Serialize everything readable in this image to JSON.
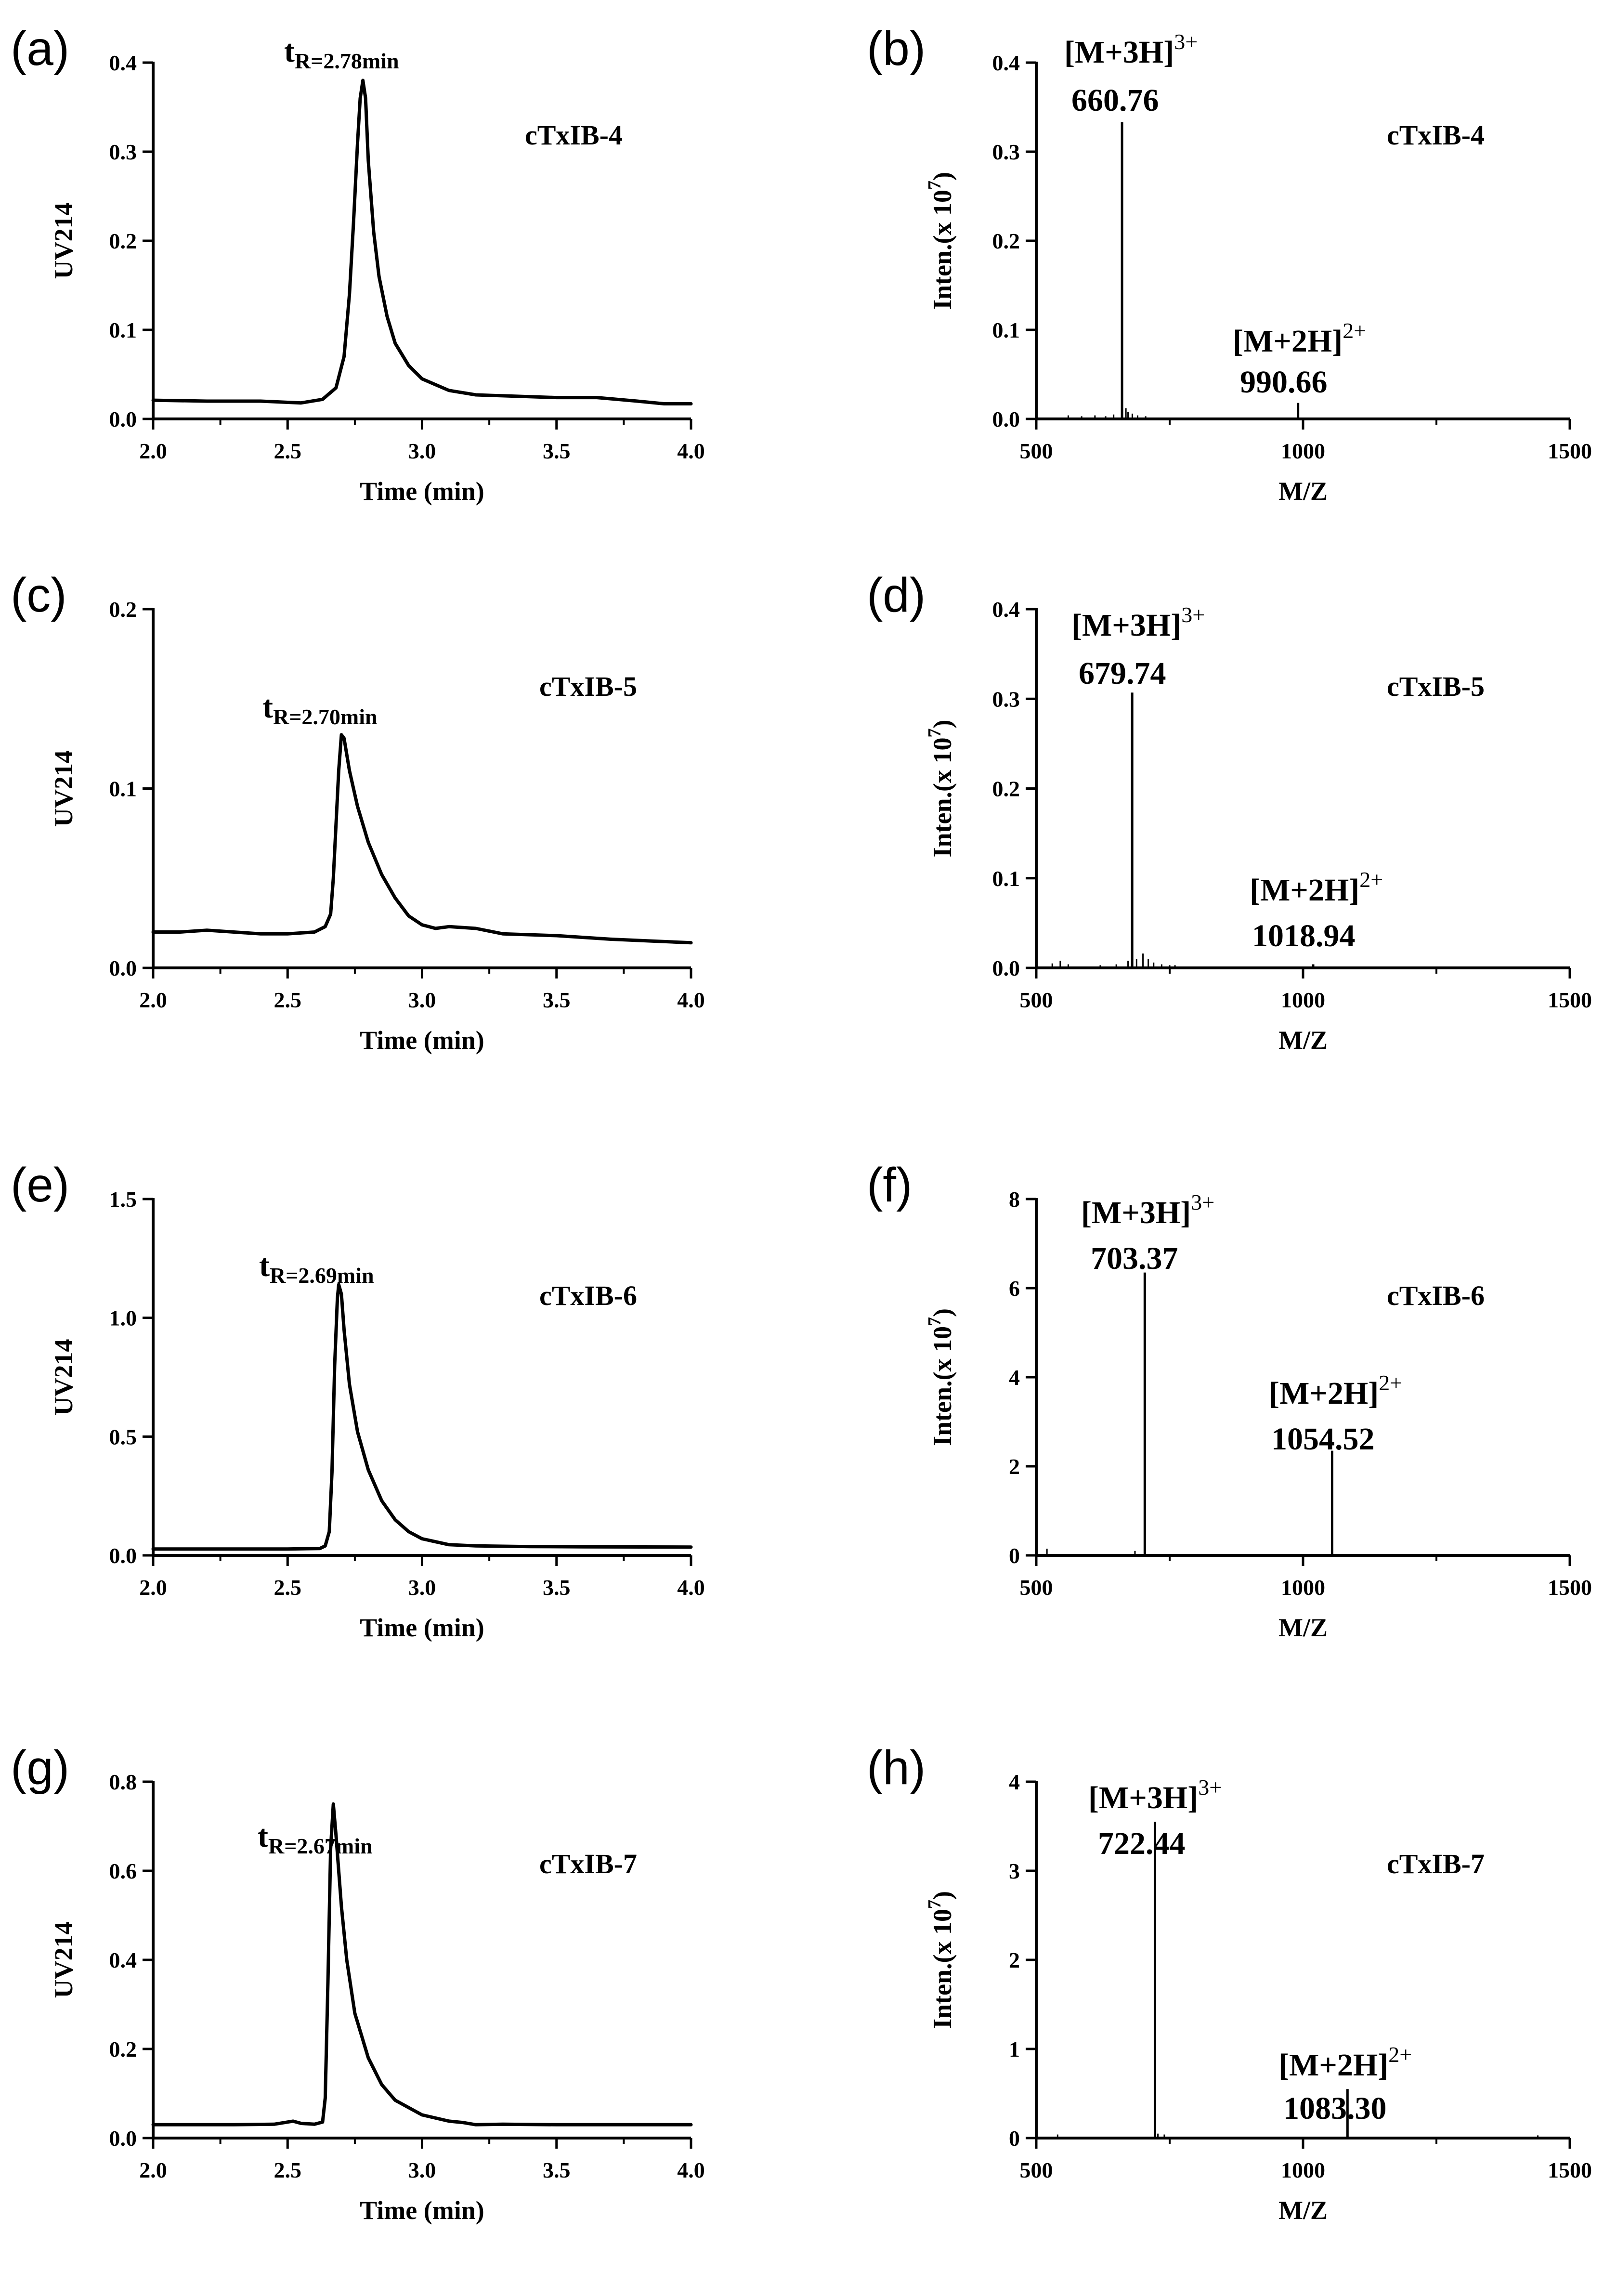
{
  "chart_data": [
    {
      "panel": "(a)",
      "type": "line",
      "sample": "cTxIB-4",
      "xlabel": "Time (min)",
      "ylabel": "UV214",
      "xlim": [
        2.0,
        4.0
      ],
      "ylim": [
        0,
        0.4
      ],
      "xticks": [
        "2.0",
        "2.5",
        "3.0",
        "3.5",
        "4.0"
      ],
      "yticks": [
        "0.0",
        "0.1",
        "0.2",
        "0.3",
        "0.4"
      ],
      "annotation": {
        "t": "t",
        "sub": "R=2.78min",
        "x": 2.78,
        "y": 0.385
      },
      "x": [
        2.0,
        2.2,
        2.4,
        2.55,
        2.63,
        2.68,
        2.71,
        2.73,
        2.745,
        2.76,
        2.77,
        2.78,
        2.79,
        2.8,
        2.82,
        2.84,
        2.87,
        2.9,
        2.95,
        3.0,
        3.1,
        3.2,
        3.3,
        3.5,
        3.65,
        3.8,
        3.9,
        4.0
      ],
      "y": [
        0.021,
        0.02,
        0.02,
        0.018,
        0.022,
        0.035,
        0.07,
        0.14,
        0.22,
        0.31,
        0.36,
        0.38,
        0.36,
        0.29,
        0.21,
        0.16,
        0.115,
        0.085,
        0.06,
        0.045,
        0.032,
        0.027,
        0.026,
        0.024,
        0.024,
        0.02,
        0.017,
        0.017
      ]
    },
    {
      "panel": "(b)",
      "type": "bar",
      "sample": "cTxIB-4",
      "xlabel": "M/Z",
      "ylabel": "Inten.(x 10",
      "ylabel_exp": "7",
      "ylabel_end": ")",
      "xlim": [
        500,
        1500
      ],
      "ylim": [
        0,
        0.4
      ],
      "xticks": [
        "500",
        "1000",
        "1500"
      ],
      "yticks": [
        "0.0",
        "0.1",
        "0.2",
        "0.3",
        "0.4"
      ],
      "peaks": [
        {
          "mz": 660.76,
          "value": 0.333,
          "ion": "[M+3H]",
          "charge": "3+",
          "label": "660.76"
        },
        {
          "mz": 990.66,
          "value": 0.018,
          "ion": "[M+2H]",
          "charge": "2+",
          "label": "990.66"
        }
      ],
      "minor": [
        [
          560,
          0.004
        ],
        [
          585,
          0.003
        ],
        [
          610,
          0.004
        ],
        [
          630,
          0.003
        ],
        [
          645,
          0.005
        ],
        [
          668,
          0.012
        ],
        [
          672,
          0.008
        ],
        [
          680,
          0.006
        ],
        [
          690,
          0.004
        ],
        [
          705,
          0.003
        ]
      ]
    },
    {
      "panel": "(c)",
      "type": "line",
      "sample": "cTxIB-5",
      "xlabel": "Time (min)",
      "ylabel": "UV214",
      "xlim": [
        2.0,
        4.0
      ],
      "ylim": [
        0,
        0.2
      ],
      "xticks": [
        "2.0",
        "2.5",
        "3.0",
        "3.5",
        "4.0"
      ],
      "yticks": [
        "0.0",
        "0.1",
        "0.2"
      ],
      "annotation": {
        "t": "t",
        "sub": "R=2.70min",
        "x": 2.7,
        "y": 0.133
      },
      "x": [
        2.0,
        2.1,
        2.2,
        2.3,
        2.4,
        2.5,
        2.6,
        2.64,
        2.66,
        2.67,
        2.68,
        2.69,
        2.7,
        2.71,
        2.73,
        2.76,
        2.8,
        2.85,
        2.9,
        2.95,
        3.0,
        3.05,
        3.1,
        3.2,
        3.3,
        3.5,
        3.7,
        3.85,
        4.0
      ],
      "y": [
        0.02,
        0.02,
        0.021,
        0.02,
        0.019,
        0.019,
        0.02,
        0.023,
        0.03,
        0.05,
        0.08,
        0.11,
        0.13,
        0.128,
        0.11,
        0.09,
        0.07,
        0.052,
        0.039,
        0.029,
        0.024,
        0.022,
        0.023,
        0.022,
        0.019,
        0.018,
        0.016,
        0.015,
        0.014
      ]
    },
    {
      "panel": "(d)",
      "type": "bar",
      "sample": "cTxIB-5",
      "xlabel": "M/Z",
      "ylabel": "Inten.(x 10",
      "ylabel_exp": "7",
      "ylabel_end": ")",
      "xlim": [
        500,
        1500
      ],
      "ylim": [
        0,
        0.4
      ],
      "xticks": [
        "500",
        "1000",
        "1500"
      ],
      "yticks": [
        "0.0",
        "0.1",
        "0.2",
        "0.3",
        "0.4"
      ],
      "peaks": [
        {
          "mz": 679.74,
          "value": 0.307,
          "ion": "[M+3H]",
          "charge": "3+",
          "label": "679.74"
        },
        {
          "mz": 1018.94,
          "value": 0.004,
          "ion": "[M+2H]",
          "charge": "2+",
          "label": "1018.94"
        }
      ],
      "minor": [
        [
          530,
          0.005
        ],
        [
          545,
          0.008
        ],
        [
          560,
          0.004
        ],
        [
          620,
          0.003
        ],
        [
          650,
          0.004
        ],
        [
          672,
          0.008
        ],
        [
          688,
          0.01
        ],
        [
          700,
          0.016
        ],
        [
          710,
          0.01
        ],
        [
          720,
          0.006
        ],
        [
          735,
          0.004
        ],
        [
          750,
          0.003
        ],
        [
          760,
          0.003
        ]
      ]
    },
    {
      "panel": "(e)",
      "type": "line",
      "sample": "cTxIB-6",
      "xlabel": "Time (min)",
      "ylabel": "UV214",
      "xlim": [
        2.0,
        4.0
      ],
      "ylim": [
        0,
        1.5
      ],
      "xticks": [
        "2.0",
        "2.5",
        "3.0",
        "3.5",
        "4.0"
      ],
      "yticks": [
        "0.0",
        "0.5",
        "1.0",
        "1.5"
      ],
      "annotation": {
        "t": "t",
        "sub": "R=2.69min",
        "x": 2.69,
        "y": 1.15
      },
      "x": [
        2.0,
        2.3,
        2.5,
        2.62,
        2.64,
        2.655,
        2.665,
        2.675,
        2.685,
        2.69,
        2.7,
        2.71,
        2.73,
        2.76,
        2.8,
        2.85,
        2.9,
        2.95,
        3.0,
        3.1,
        3.2,
        3.4,
        3.6,
        4.0
      ],
      "y": [
        0.027,
        0.027,
        0.027,
        0.029,
        0.04,
        0.1,
        0.35,
        0.8,
        1.08,
        1.14,
        1.1,
        0.95,
        0.72,
        0.52,
        0.36,
        0.23,
        0.15,
        0.1,
        0.07,
        0.045,
        0.04,
        0.037,
        0.036,
        0.035
      ]
    },
    {
      "panel": "(f)",
      "type": "bar",
      "sample": "cTxIB-6",
      "xlabel": "M/Z",
      "ylabel": "Inten.(x 10",
      "ylabel_exp": "7",
      "ylabel_end": ")",
      "xlim": [
        500,
        1500
      ],
      "ylim": [
        0,
        8
      ],
      "xticks": [
        "500",
        "1000",
        "1500"
      ],
      "yticks": [
        "0",
        "2",
        "4",
        "6",
        "8"
      ],
      "peaks": [
        {
          "mz": 703.37,
          "value": 6.35,
          "ion": "[M+3H]",
          "charge": "3+",
          "label": "703.37"
        },
        {
          "mz": 1054.52,
          "value": 2.35,
          "ion": "[M+2H]",
          "charge": "2+",
          "label": "1054.52"
        }
      ],
      "minor": [
        [
          520,
          0.15
        ],
        [
          685,
          0.1
        ],
        [
          1400,
          0.03
        ]
      ]
    },
    {
      "panel": "(g)",
      "type": "line",
      "sample": "cTxIB-7",
      "xlabel": "Time (min)",
      "ylabel": "UV214",
      "xlim": [
        2.0,
        4.0
      ],
      "ylim": [
        0,
        0.8
      ],
      "xticks": [
        "2.0",
        "2.5",
        "3.0",
        "3.5",
        "4.0"
      ],
      "yticks": [
        "0.0",
        "0.2",
        "0.4",
        "0.6",
        "0.8"
      ],
      "annotation": {
        "t": "t",
        "sub": "R=2.67min",
        "x": 2.67,
        "y": 0.75
      },
      "x": [
        2.0,
        2.3,
        2.45,
        2.52,
        2.55,
        2.6,
        2.63,
        2.64,
        2.65,
        2.66,
        2.67,
        2.68,
        2.7,
        2.72,
        2.75,
        2.8,
        2.85,
        2.9,
        3.0,
        3.1,
        3.15,
        3.2,
        3.3,
        3.5,
        4.0
      ],
      "y": [
        0.03,
        0.03,
        0.031,
        0.038,
        0.033,
        0.031,
        0.036,
        0.09,
        0.35,
        0.65,
        0.75,
        0.68,
        0.52,
        0.4,
        0.28,
        0.18,
        0.12,
        0.085,
        0.052,
        0.038,
        0.035,
        0.03,
        0.031,
        0.03,
        0.03
      ]
    },
    {
      "panel": "(h)",
      "type": "bar",
      "sample": "cTxIB-7",
      "xlabel": "M/Z",
      "ylabel": "Inten.(x 10",
      "ylabel_exp": "7",
      "ylabel_end": ")",
      "xlim": [
        500,
        1500
      ],
      "ylim": [
        0,
        4
      ],
      "xticks": [
        "500",
        "1000",
        "1500"
      ],
      "yticks": [
        "0",
        "1",
        "2",
        "3",
        "4"
      ],
      "peaks": [
        {
          "mz": 722.44,
          "value": 3.55,
          "ion": "[M+3H]",
          "charge": "3+",
          "label": "722.44"
        },
        {
          "mz": 1083.3,
          "value": 0.55,
          "ion": "[M+2H]",
          "charge": "2+",
          "label": "1083.30"
        }
      ],
      "minor": [
        [
          540,
          0.04
        ],
        [
          728,
          0.05
        ],
        [
          740,
          0.04
        ],
        [
          1440,
          0.03
        ]
      ]
    }
  ]
}
